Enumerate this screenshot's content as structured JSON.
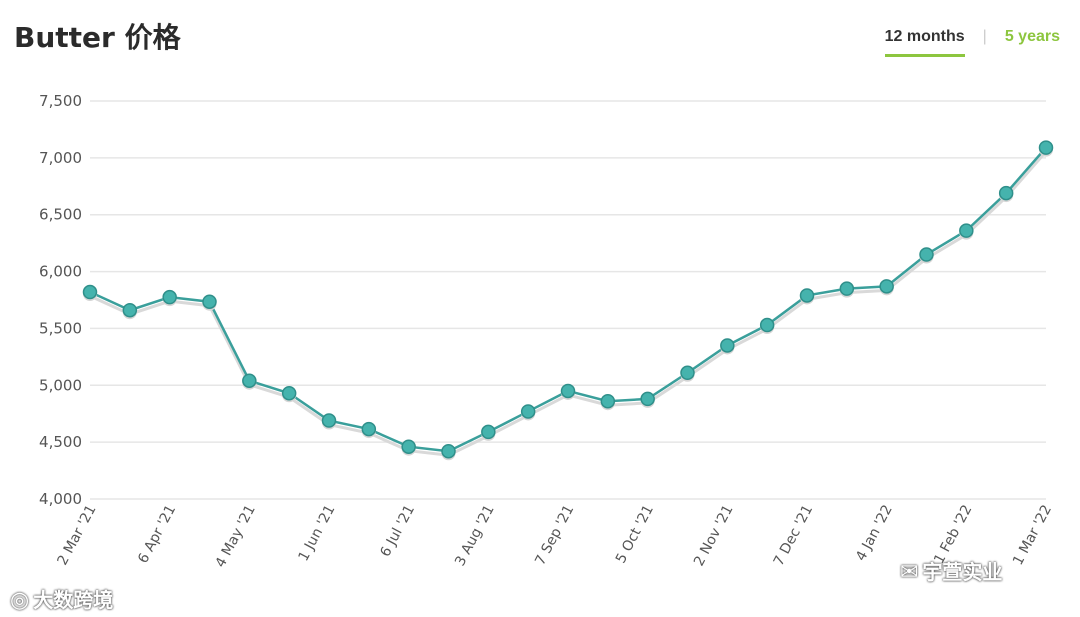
{
  "title": "Butter 价格",
  "tabs": [
    {
      "label": "12 months",
      "active": true
    },
    {
      "label": "5 years",
      "active": false
    }
  ],
  "tab_separator": "|",
  "colors": {
    "line": "#3a9f9b",
    "marker": "#45b3ad",
    "accent": "#8dc63f",
    "grid": "#e6e6e6"
  },
  "watermarks": {
    "left": "大数跨境",
    "right": "宇萱实业",
    "left_icon": "weibo-icon",
    "right_icon": "wechat-icon"
  },
  "chart_data": {
    "type": "line",
    "title": "Butter 价格",
    "xlabel": "",
    "ylabel": "",
    "ylim": [
      4000,
      7500
    ],
    "yticks": [
      "4,000",
      "4,500",
      "5,000",
      "5,500",
      "6,000",
      "6,500",
      "7,000",
      "7,500"
    ],
    "ytick_values": [
      4000,
      4500,
      5000,
      5500,
      6000,
      6500,
      7000,
      7500
    ],
    "xtick_labels": [
      "2 Mar '21",
      "6 Apr '21",
      "4 May '21",
      "1 Jun '21",
      "6 Jul '21",
      "3 Aug '21",
      "7 Sep '21",
      "5 Oct '21",
      "2 Nov '21",
      "7 Dec '21",
      "4 Jan '22",
      "1 Feb '22",
      "1 Mar '22"
    ],
    "grid": true,
    "legend": "none",
    "series": [
      {
        "values": [
          5820,
          5660,
          5775,
          5735,
          5040,
          4930,
          4690,
          4615,
          4460,
          4420,
          4590,
          4770,
          4950,
          4860,
          4880,
          5110,
          5350,
          5530,
          5790,
          5850,
          5870,
          6150,
          6360,
          6690,
          7090
        ]
      }
    ]
  }
}
